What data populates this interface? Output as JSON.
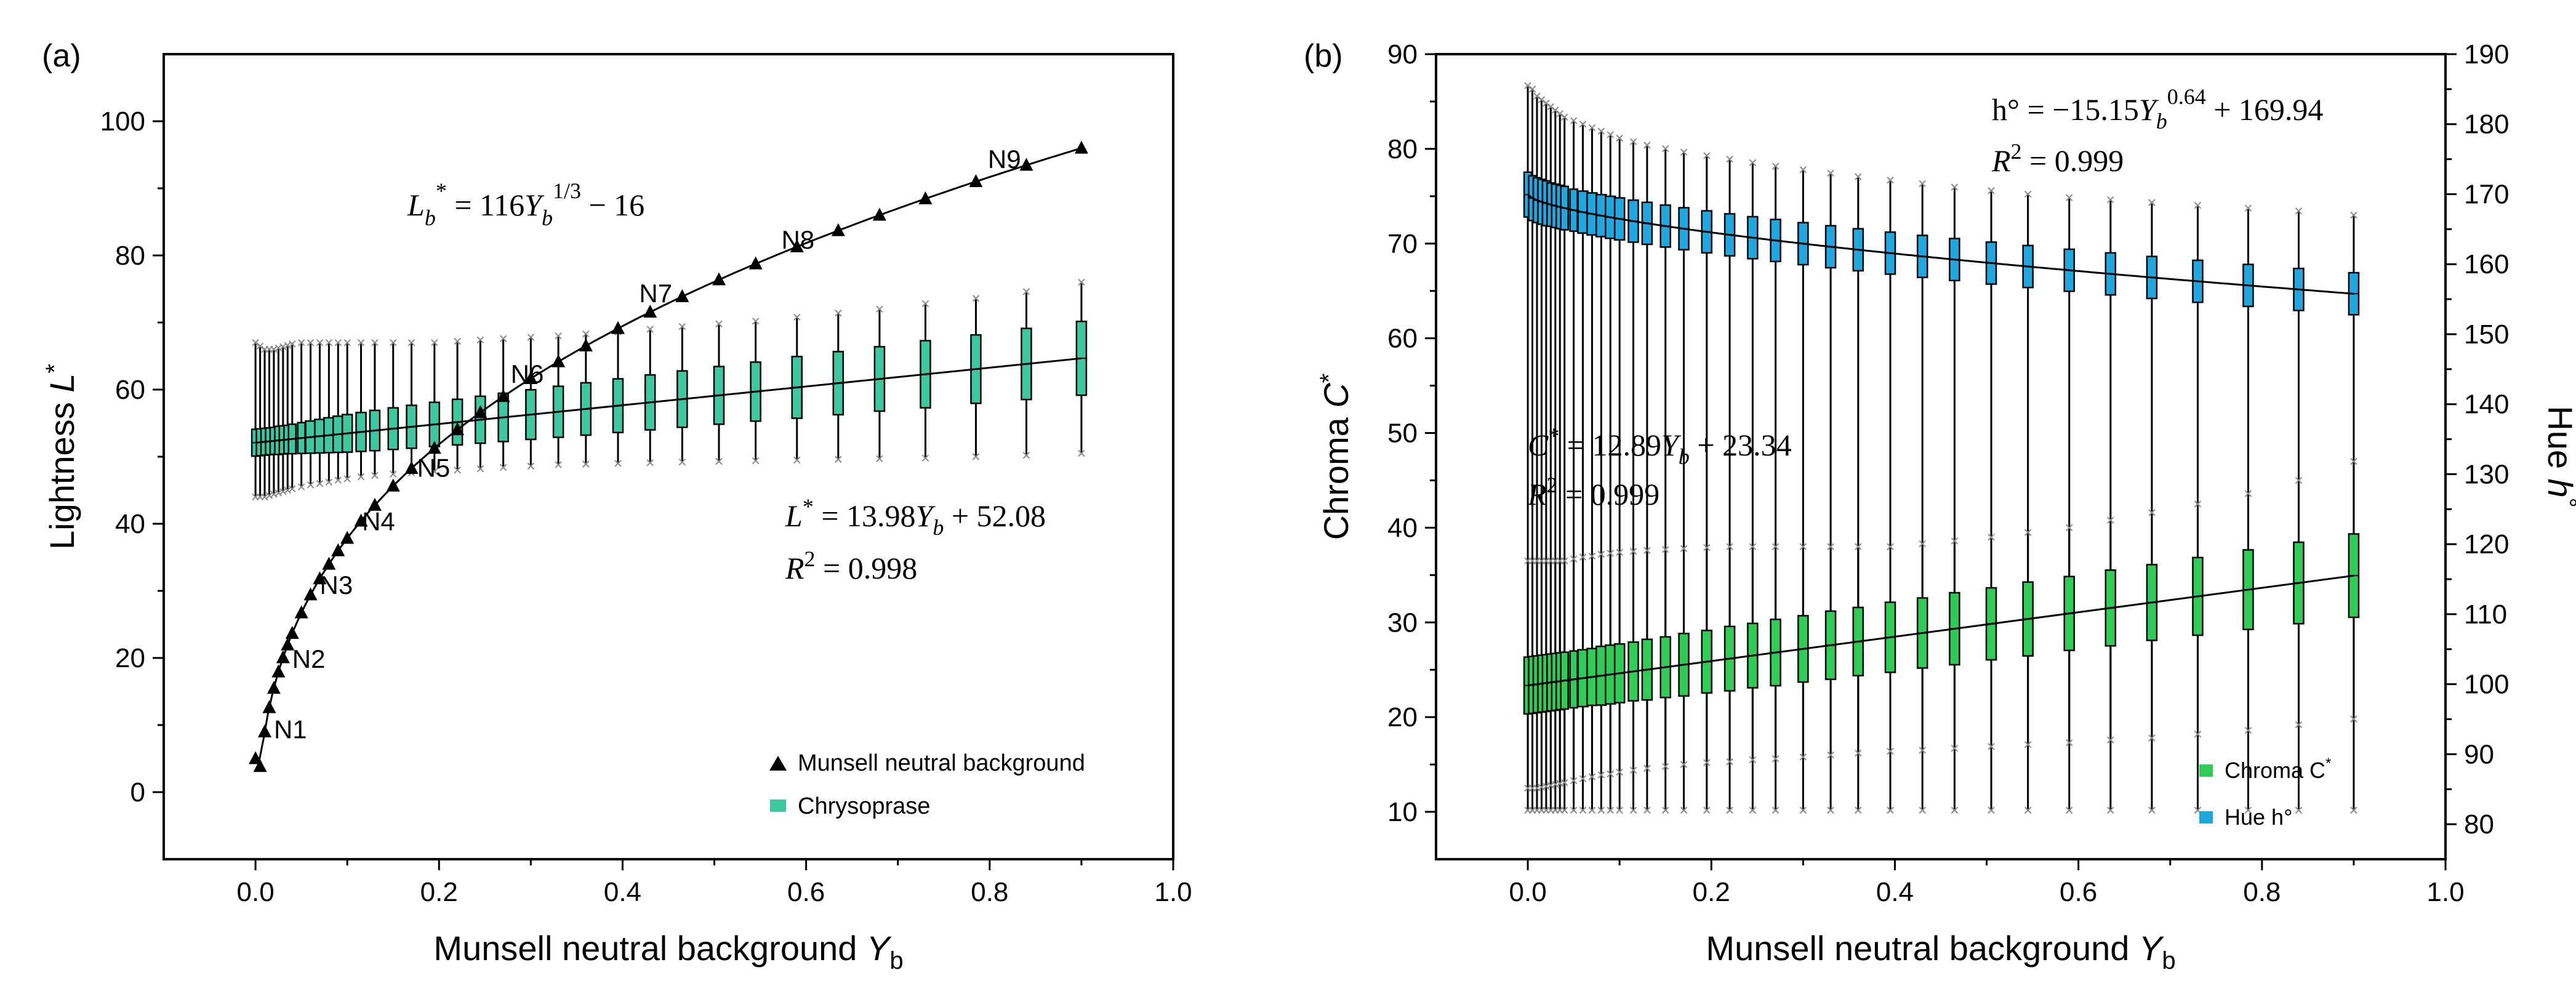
{
  "colors": {
    "axis": "#000000",
    "munsell_marker": "#000000",
    "chrysoprase_box": "#3cc7a0",
    "chroma_box": "#2ecc55",
    "hue_box": "#1fa8e0",
    "whisker_cap": "#888888"
  },
  "chart_data": [
    {
      "panel_label": "(a)",
      "type": "line",
      "xlabel": "Munsell neutral background",
      "xlabel_sub": "b",
      "ylabel": "Lightness",
      "ylabel_sym": "L",
      "ylabel_sup": "*",
      "xlim": [
        -0.1,
        1.0
      ],
      "ylim": [
        -10,
        110
      ],
      "xticks": [
        "0.0",
        "0.2",
        "0.4",
        "0.6",
        "0.8",
        "1.0"
      ],
      "yticks": [
        "0",
        "20",
        "40",
        "60",
        "80",
        "100"
      ],
      "series": [
        {
          "name": "Munsell neutral background",
          "kind": "line-markers",
          "marker": "triangle",
          "x": [
            0.0,
            0.005,
            0.01,
            0.015,
            0.02,
            0.025,
            0.03,
            0.035,
            0.04,
            0.05,
            0.06,
            0.07,
            0.08,
            0.09,
            0.1,
            0.115,
            0.13,
            0.15,
            0.17,
            0.195,
            0.22,
            0.245,
            0.27,
            0.3,
            0.33,
            0.36,
            0.395,
            0.43,
            0.465,
            0.505,
            0.545,
            0.59,
            0.635,
            0.68,
            0.73,
            0.785,
            0.84,
            0.9
          ],
          "y": [
            5.0,
            10.5,
            13.5,
            16.0,
            18.0,
            20.0,
            21.5,
            23.0,
            24.5,
            27.0,
            29.5,
            31.5,
            33.3,
            35.0,
            36.7,
            39.0,
            41.2,
            43.9,
            46.3,
            49.3,
            51.8,
            54.3,
            56.6,
            59.2,
            61.6,
            63.9,
            66.4,
            68.8,
            71.1,
            73.6,
            75.9,
            78.4,
            80.8,
            83.0,
            85.5,
            88.0,
            90.5,
            93.0
          ]
        },
        {
          "name": "Chrysoprase",
          "kind": "box",
          "fit": {
            "slope": 13.98,
            "intercept": 52.08
          },
          "x": [
            0.0,
            0.005,
            0.01,
            0.015,
            0.02,
            0.025,
            0.03,
            0.035,
            0.04,
            0.05,
            0.06,
            0.07,
            0.08,
            0.09,
            0.1,
            0.115,
            0.13,
            0.15,
            0.17,
            0.195,
            0.22,
            0.245,
            0.27,
            0.3,
            0.33,
            0.36,
            0.395,
            0.43,
            0.465,
            0.505,
            0.545,
            0.59,
            0.635,
            0.68,
            0.73,
            0.785,
            0.84,
            0.9
          ],
          "box_half_height": [
            2.0,
            2.0,
            2.0,
            2.0,
            2.0,
            2.1,
            2.1,
            2.1,
            2.2,
            2.3,
            2.4,
            2.5,
            2.6,
            2.7,
            2.8,
            2.9,
            3.0,
            3.1,
            3.2,
            3.3,
            3.4,
            3.5,
            3.6,
            3.7,
            3.8,
            3.9,
            4.0,
            4.1,
            4.2,
            4.3,
            4.4,
            4.6,
            4.7,
            4.8,
            5.0,
            5.1,
            5.3,
            5.5
          ],
          "whisker_lo": [
            44.0,
            44.0,
            44.0,
            44.2,
            44.4,
            44.6,
            44.8,
            45.0,
            45.2,
            45.5,
            45.8,
            46.0,
            46.2,
            46.5,
            46.7,
            47.0,
            47.2,
            47.4,
            47.6,
            47.8,
            48.0,
            48.2,
            48.4,
            48.6,
            48.8,
            48.9,
            49.0,
            49.1,
            49.2,
            49.3,
            49.4,
            49.5,
            49.6,
            49.7,
            49.8,
            50.0,
            50.2,
            50.5
          ],
          "whisker_hi": [
            67.0,
            66.5,
            66.0,
            66.0,
            66.0,
            66.2,
            66.4,
            66.6,
            66.8,
            67.0,
            67.0,
            67.0,
            67.0,
            67.0,
            67.0,
            67.0,
            67.0,
            67.0,
            67.0,
            67.0,
            67.2,
            67.4,
            67.6,
            67.8,
            68.0,
            68.3,
            68.6,
            69.0,
            69.4,
            69.8,
            70.2,
            70.8,
            71.4,
            72.0,
            72.8,
            73.6,
            74.6,
            76.0
          ]
        }
      ],
      "legend_position": "bottom-right",
      "annotations": {
        "point_labels": [
          "N1",
          "N2",
          "N3",
          "N4",
          "N5",
          "N6",
          "N7",
          "N8",
          "N9"
        ],
        "point_label_x": [
          0.012,
          0.032,
          0.062,
          0.108,
          0.168,
          0.27,
          0.41,
          0.565,
          0.79
        ],
        "point_label_y": [
          9.5,
          20.0,
          31.0,
          40.5,
          48.5,
          62.5,
          74.5,
          82.5,
          94.5
        ],
        "curve_equation": "L_b^* = 116Y_b^{1/3} − 16",
        "fit_equation": "L^* = 13.98Y_b + 52.08",
        "fit_r2": "R^2 = 0.998"
      }
    },
    {
      "panel_label": "(b)",
      "type": "box",
      "xlabel": "Munsell neutral background",
      "xlabel_sub": "b",
      "ylabel_left": "Chroma",
      "ylabel_left_sym": "C",
      "ylabel_left_sup": "*",
      "ylabel_right": "Hue",
      "ylabel_right_sym": "h",
      "ylabel_right_sup": "°",
      "xlim": [
        -0.1,
        1.0
      ],
      "ylim_left": [
        5,
        90
      ],
      "ylim_right": [
        75,
        190
      ],
      "xticks": [
        "0.0",
        "0.2",
        "0.4",
        "0.6",
        "0.8",
        "1.0"
      ],
      "yticks_left": [
        "10",
        "20",
        "30",
        "40",
        "50",
        "60",
        "70",
        "80",
        "90"
      ],
      "yticks_right": [
        "80",
        "90",
        "100",
        "110",
        "120",
        "130",
        "140",
        "150",
        "160",
        "170",
        "180",
        "190"
      ],
      "x": [
        0.0,
        0.005,
        0.01,
        0.015,
        0.02,
        0.025,
        0.03,
        0.035,
        0.04,
        0.05,
        0.06,
        0.07,
        0.08,
        0.09,
        0.1,
        0.115,
        0.13,
        0.15,
        0.17,
        0.195,
        0.22,
        0.245,
        0.27,
        0.3,
        0.33,
        0.36,
        0.395,
        0.43,
        0.465,
        0.505,
        0.545,
        0.59,
        0.635,
        0.68,
        0.73,
        0.785,
        0.84,
        0.9
      ],
      "series": [
        {
          "name": "Chroma C",
          "name_sup": "*",
          "axis": "left",
          "fit": {
            "slope": 12.89,
            "intercept": 23.34
          },
          "box_half_height": [
            3.0,
            3.0,
            3.0,
            3.0,
            3.0,
            3.0,
            3.0,
            3.0,
            3.0,
            3.0,
            3.0,
            3.0,
            3.1,
            3.1,
            3.1,
            3.1,
            3.2,
            3.2,
            3.3,
            3.3,
            3.4,
            3.4,
            3.5,
            3.5,
            3.6,
            3.6,
            3.7,
            3.7,
            3.8,
            3.8,
            3.9,
            3.9,
            4.0,
            4.0,
            4.1,
            4.2,
            4.3,
            4.4
          ],
          "whisker_lo": [
            12.5,
            12.5,
            12.5,
            12.6,
            12.7,
            12.8,
            12.9,
            13.0,
            13.1,
            13.3,
            13.5,
            13.7,
            13.9,
            14.0,
            14.2,
            14.4,
            14.6,
            14.8,
            15.0,
            15.2,
            15.3,
            15.5,
            15.6,
            15.8,
            16.0,
            16.2,
            16.4,
            16.5,
            16.7,
            16.9,
            17.1,
            17.3,
            17.6,
            17.8,
            18.2,
            18.6,
            19.2,
            19.8
          ],
          "whisker_hi": [
            36.5,
            36.5,
            36.5,
            36.5,
            36.5,
            36.5,
            36.5,
            36.5,
            36.5,
            36.7,
            36.9,
            37.0,
            37.2,
            37.3,
            37.4,
            37.5,
            37.6,
            37.7,
            37.8,
            37.9,
            38.0,
            38.0,
            38.0,
            38.0,
            38.0,
            38.0,
            38.0,
            38.3,
            38.6,
            39.0,
            39.5,
            40.0,
            40.8,
            41.6,
            42.5,
            43.6,
            45.0,
            47.0
          ]
        },
        {
          "name": "Hue h",
          "name_sup": "°",
          "axis": "right",
          "fit": {
            "a": -15.15,
            "b": 0.64,
            "c": 169.94
          },
          "box_half_height": [
            3.2,
            3.2,
            3.2,
            3.2,
            3.2,
            3.1,
            3.1,
            3.1,
            3.1,
            3.0,
            3.0,
            3.0,
            3.0,
            3.0,
            3.0,
            3.0,
            3.0,
            3.0,
            3.0,
            3.0,
            3.0,
            3.0,
            3.0,
            3.0,
            3.0,
            3.0,
            3.0,
            3.0,
            3.0,
            3.0,
            3.0,
            3.0,
            3.0,
            3.0,
            3.0,
            3.0,
            3.0,
            3.0
          ],
          "whisker_lo": [
            82.0,
            82.0,
            82.0,
            82.0,
            82.0,
            82.0,
            82.0,
            82.0,
            82.0,
            82.0,
            82.0,
            82.0,
            82.0,
            82.0,
            82.0,
            82.0,
            82.0,
            82.0,
            82.0,
            82.0,
            82.0,
            82.0,
            82.0,
            82.0,
            82.0,
            82.0,
            82.0,
            82.0,
            82.0,
            82.0,
            82.0,
            82.0,
            82.0,
            82.0,
            82.0,
            82.0,
            82.0,
            82.0
          ],
          "whisker_hi": [
            185.5,
            185.0,
            184.0,
            183.5,
            183.0,
            182.5,
            182.0,
            181.5,
            181.0,
            180.5,
            180.0,
            179.5,
            179.0,
            178.5,
            178.0,
            177.5,
            177.0,
            176.5,
            176.0,
            175.5,
            175.0,
            174.5,
            174.0,
            173.5,
            173.0,
            172.5,
            172.0,
            171.5,
            171.0,
            170.5,
            170.0,
            169.5,
            169.2,
            168.8,
            168.4,
            168.0,
            167.6,
            167.0
          ]
        }
      ],
      "legend_position": "bottom-right",
      "annotations": {
        "hue_equation": "h° = −15.15Y_b^{0.64} + 169.94",
        "hue_r2": "R^2 = 0.999",
        "chroma_equation": "C^* = 12.89Y_b + 23.34",
        "chroma_r2": "R^2 = 0.999"
      }
    }
  ]
}
